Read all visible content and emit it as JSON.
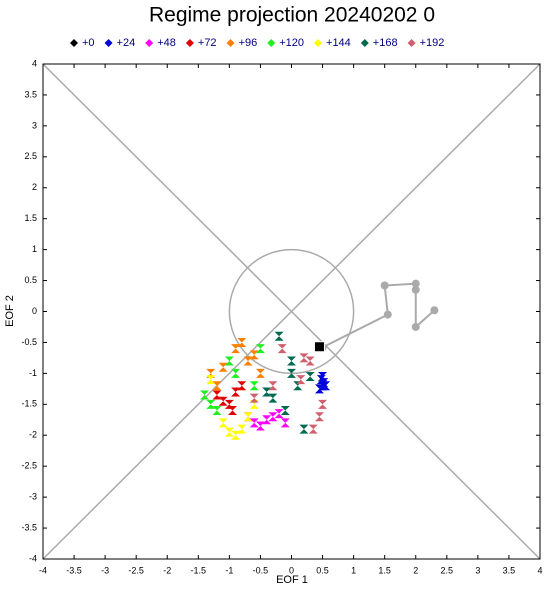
{
  "chart_data": {
    "type": "scatter",
    "title": "Regime projection 20240202 0",
    "x_label": "EOF 1",
    "y_label": "EOF 2",
    "xlim": [
      -4,
      4
    ],
    "ylim": [
      -4,
      4
    ],
    "xticks": [
      -4,
      -3.5,
      -3,
      -2.5,
      -2,
      -1.5,
      -1,
      -0.5,
      0,
      0.5,
      1,
      1.5,
      2,
      2.5,
      3,
      3.5,
      4
    ],
    "yticks": [
      -4,
      -3.5,
      -3,
      -2.5,
      -2,
      -1.5,
      -1,
      -0.5,
      0,
      0.5,
      1,
      1.5,
      2,
      2.5,
      3,
      3.5,
      4
    ],
    "legend": "top",
    "track": {
      "color": "#aaaaaa",
      "x": [
        0.5,
        1.55,
        1.5,
        2,
        2,
        2,
        2.3
      ],
      "y": [
        -0.58,
        -0.05,
        0.42,
        0.45,
        0.35,
        -0.25,
        0.02
      ]
    },
    "series": [
      {
        "name": "+0",
        "color": "#000000",
        "x": [
          0.45
        ],
        "y": [
          -0.57
        ]
      },
      {
        "name": "+24",
        "color": "#0000dd",
        "x": [
          0.48,
          0.5,
          0.52,
          0.45,
          0.5,
          0.55
        ],
        "y": [
          -1.1,
          -1.2,
          -1.15,
          -1.25,
          -1.05,
          -1.2
        ]
      },
      {
        "name": "+48",
        "color": "#ff00ff",
        "x": [
          -0.6,
          -0.4,
          -0.3,
          -0.5,
          -0.2,
          -0.7,
          -0.1
        ],
        "y": [
          -1.8,
          -1.75,
          -1.7,
          -1.85,
          -1.65,
          -1.7,
          -1.8
        ]
      },
      {
        "name": "+72",
        "color": "#e00000",
        "x": [
          -1.1,
          -0.9,
          -1.0,
          -0.8,
          -1.2,
          -0.95
        ],
        "y": [
          -1.45,
          -1.3,
          -1.5,
          -1.2,
          -1.35,
          -1.6
        ]
      },
      {
        "name": "+96",
        "color": "#ff7f00",
        "x": [
          -1.3,
          -0.9,
          -0.7,
          -1.1,
          -0.5,
          -0.8,
          -1.2,
          -0.6
        ],
        "y": [
          -1.0,
          -0.6,
          -0.8,
          -0.9,
          -1.0,
          -0.5,
          -1.2,
          -0.7
        ]
      },
      {
        "name": "+120",
        "color": "#22ee22",
        "x": [
          -1.4,
          -1.2,
          -1.0,
          -0.9,
          -0.6,
          -1.3,
          -0.5
        ],
        "y": [
          -1.35,
          -1.6,
          -0.8,
          -1.0,
          -1.2,
          -1.5,
          -0.6
        ]
      },
      {
        "name": "+144",
        "color": "#ffff00",
        "x": [
          -1.0,
          -1.1,
          -0.9,
          -0.7,
          -1.3,
          -0.8,
          -0.6
        ],
        "y": [
          -1.95,
          -1.8,
          -2.0,
          -1.7,
          -1.1,
          -1.9,
          -1.5
        ]
      },
      {
        "name": "+168",
        "color": "#006a50",
        "x": [
          -0.2,
          0.0,
          0.1,
          -0.3,
          -0.1,
          0.2,
          -0.4,
          0.3,
          0.0
        ],
        "y": [
          -0.4,
          -0.8,
          -1.2,
          -1.4,
          -1.6,
          -1.9,
          -1.3,
          -1.05,
          -1.0
        ]
      },
      {
        "name": "+192",
        "color": "#d06070",
        "x": [
          0.2,
          -0.15,
          0.5,
          0.35,
          -0.3,
          0.15,
          -0.6,
          0.3,
          0.45
        ],
        "y": [
          -0.75,
          -0.6,
          -1.5,
          -1.9,
          -1.2,
          -1.1,
          -1.4,
          -0.8,
          -1.7
        ]
      }
    ]
  }
}
